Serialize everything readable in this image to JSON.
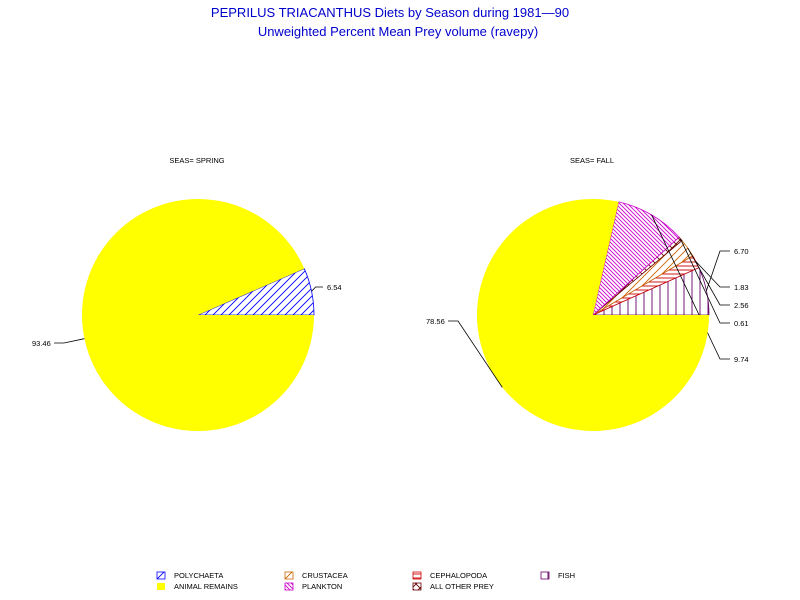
{
  "title": "PEPRILUS TRIACANTHUS Diets by Season during 1981—90",
  "subtitle": "Unweighted Percent Mean Prey volume (ravepy)",
  "colors": {
    "title": "#0000cc",
    "ANIMAL REMAINS": "#ffff00",
    "POLYCHAETA": "#0000ff",
    "CRUSTACEA": "#cc6600",
    "CEPHALOPODA": "#cc0000",
    "FISH": "#660066",
    "PLANKTON": "#cc00cc",
    "ALL OTHER PREY": "#660000"
  },
  "chart_data": [
    {
      "type": "pie",
      "label": "SEAS= SPRING",
      "slices": [
        {
          "category": "POLYCHAETA",
          "value": 6.54,
          "label": "6.54"
        },
        {
          "category": "ANIMAL REMAINS",
          "value": 93.46,
          "label": "93.46"
        }
      ]
    },
    {
      "type": "pie",
      "label": "SEAS= FALL",
      "slices": [
        {
          "category": "FISH",
          "value": 6.7,
          "label": "6.70"
        },
        {
          "category": "CEPHALOPODA",
          "value": 1.83,
          "label": "1.83"
        },
        {
          "category": "CRUSTACEA",
          "value": 2.56,
          "label": "2.56"
        },
        {
          "category": "ALL OTHER PREY",
          "value": 0.61,
          "label": "0.61"
        },
        {
          "category": "PLANKTON",
          "value": 9.74,
          "label": "9.74"
        },
        {
          "category": "ANIMAL REMAINS",
          "value": 78.56,
          "label": "78.56"
        }
      ]
    }
  ],
  "legend": [
    {
      "label": "POLYCHAETA",
      "pattern": "hatch-diag-up"
    },
    {
      "label": "CRUSTACEA",
      "pattern": "hatch-diag-up"
    },
    {
      "label": "CEPHALOPODA",
      "pattern": "hatch-horizontal"
    },
    {
      "label": "FISH",
      "pattern": "hatch-vertical"
    },
    {
      "label": "ANIMAL REMAINS",
      "pattern": "solid"
    },
    {
      "label": "PLANKTON",
      "pattern": "hatch-diag-down"
    },
    {
      "label": "ALL OTHER PREY",
      "pattern": "crosshatch"
    }
  ]
}
